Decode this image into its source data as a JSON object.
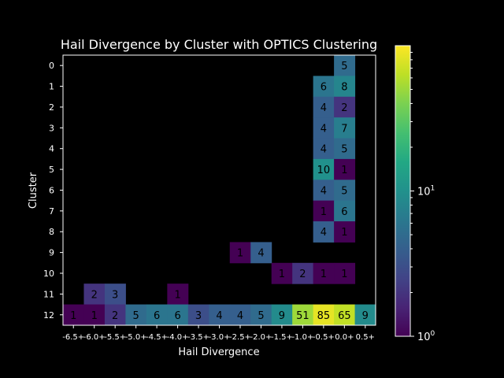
{
  "chart_data": {
    "type": "heatmap",
    "title": "Hail Divergence by Cluster with OPTICS Clustering",
    "xlabel": "Hail Divergence",
    "ylabel": "Cluster",
    "x_categories": [
      "-6.5+",
      "-6.0+",
      "-5.5+",
      "-5.0+",
      "-4.5+",
      "-4.0+",
      "-3.5+",
      "-3.0+",
      "-2.5+",
      "-2.0+",
      "-1.5+",
      "-1.0+",
      "-0.5+",
      "0.0+",
      "0.5+"
    ],
    "y_categories": [
      "0",
      "1",
      "2",
      "3",
      "4",
      "5",
      "6",
      "7",
      "8",
      "9",
      "10",
      "11",
      "12"
    ],
    "color_scale": "log",
    "colormap": "viridis",
    "colorbar_range": [
      1,
      100
    ],
    "colorbar_ticks": [
      {
        "value": 1,
        "base": "10",
        "exp": "0"
      },
      {
        "value": 10,
        "base": "10",
        "exp": "1"
      }
    ],
    "cells": [
      {
        "cluster": "0",
        "x": "0.0+",
        "value": 5
      },
      {
        "cluster": "1",
        "x": "-0.5+",
        "value": 6
      },
      {
        "cluster": "1",
        "x": "0.0+",
        "value": 8
      },
      {
        "cluster": "2",
        "x": "-0.5+",
        "value": 4
      },
      {
        "cluster": "2",
        "x": "0.0+",
        "value": 2
      },
      {
        "cluster": "3",
        "x": "-0.5+",
        "value": 4
      },
      {
        "cluster": "3",
        "x": "0.0+",
        "value": 7
      },
      {
        "cluster": "4",
        "x": "-0.5+",
        "value": 4
      },
      {
        "cluster": "4",
        "x": "0.0+",
        "value": 5
      },
      {
        "cluster": "5",
        "x": "-0.5+",
        "value": 10
      },
      {
        "cluster": "5",
        "x": "0.0+",
        "value": 1
      },
      {
        "cluster": "6",
        "x": "-0.5+",
        "value": 4
      },
      {
        "cluster": "6",
        "x": "0.0+",
        "value": 5
      },
      {
        "cluster": "7",
        "x": "-0.5+",
        "value": 1
      },
      {
        "cluster": "7",
        "x": "0.0+",
        "value": 6
      },
      {
        "cluster": "8",
        "x": "-0.5+",
        "value": 4
      },
      {
        "cluster": "8",
        "x": "0.0+",
        "value": 1
      },
      {
        "cluster": "9",
        "x": "-2.5+",
        "value": 1
      },
      {
        "cluster": "9",
        "x": "-2.0+",
        "value": 4
      },
      {
        "cluster": "10",
        "x": "-1.5+",
        "value": 1
      },
      {
        "cluster": "10",
        "x": "-1.0+",
        "value": 2
      },
      {
        "cluster": "10",
        "x": "-0.5+",
        "value": 1
      },
      {
        "cluster": "10",
        "x": "0.0+",
        "value": 1
      },
      {
        "cluster": "11",
        "x": "-6.0+",
        "value": 2
      },
      {
        "cluster": "11",
        "x": "-5.5+",
        "value": 3
      },
      {
        "cluster": "11",
        "x": "-4.0+",
        "value": 1
      },
      {
        "cluster": "12",
        "x": "-6.5+",
        "value": 1
      },
      {
        "cluster": "12",
        "x": "-6.0+",
        "value": 1
      },
      {
        "cluster": "12",
        "x": "-5.5+",
        "value": 2
      },
      {
        "cluster": "12",
        "x": "-5.0+",
        "value": 5
      },
      {
        "cluster": "12",
        "x": "-4.5+",
        "value": 6
      },
      {
        "cluster": "12",
        "x": "-4.0+",
        "value": 6
      },
      {
        "cluster": "12",
        "x": "-3.5+",
        "value": 3
      },
      {
        "cluster": "12",
        "x": "-3.0+",
        "value": 4
      },
      {
        "cluster": "12",
        "x": "-2.5+",
        "value": 4
      },
      {
        "cluster": "12",
        "x": "-2.0+",
        "value": 5
      },
      {
        "cluster": "12",
        "x": "-1.5+",
        "value": 9
      },
      {
        "cluster": "12",
        "x": "-1.0+",
        "value": 51
      },
      {
        "cluster": "12",
        "x": "-0.5+",
        "value": 85
      },
      {
        "cluster": "12",
        "x": "0.0+",
        "value": 65
      },
      {
        "cluster": "12",
        "x": "0.5+",
        "value": 9
      }
    ]
  }
}
